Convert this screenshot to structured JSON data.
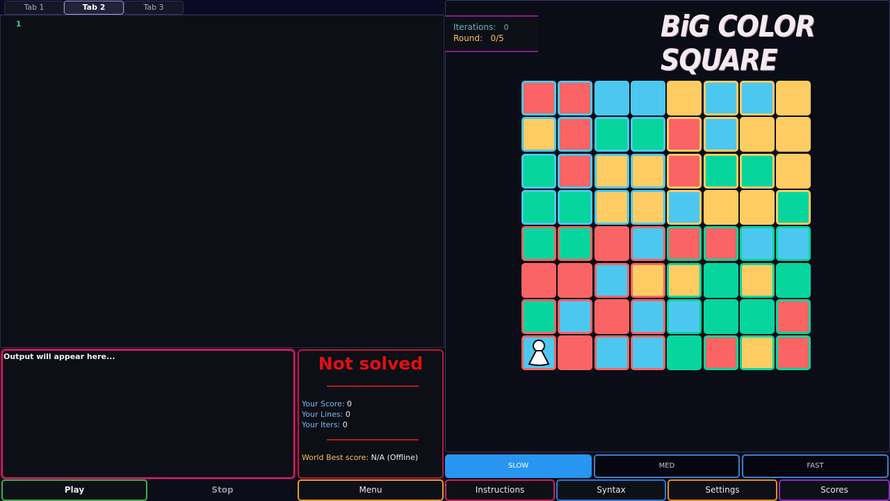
{
  "tabs": [
    {
      "label": "Tab 1"
    },
    {
      "label": "Tab 2",
      "active": true
    },
    {
      "label": "Tab 3"
    }
  ],
  "editor": {
    "line_numbers": [
      "1"
    ]
  },
  "output": {
    "placeholder": "Output will appear here..."
  },
  "result": {
    "status": "Not solved",
    "score_label": "Your Score:",
    "score": "0",
    "lines_label": "Your Lines:",
    "lines": "0",
    "iters_label": "Your Iters:",
    "iters": "0",
    "world_label": "World Best score:",
    "world": "N/A (Offline)"
  },
  "controls": {
    "play": "Play",
    "stop": "Stop",
    "menu": "Menu",
    "instructions": "Instructions",
    "syntax": "Syntax",
    "settings": "Settings",
    "scores": "Scores"
  },
  "speed": {
    "options": [
      "SLOW",
      "MED",
      "FAST"
    ],
    "selected": "SLOW"
  },
  "info": {
    "iterations_label": "Iterations:",
    "iterations": "0",
    "round_label": "Round:",
    "round": "0/5"
  },
  "logo": "BiG COLOR SQUARE",
  "colors": {
    "R": "#fa6464",
    "B": "#4cc8f0",
    "Y": "#fecc62",
    "G": "#06d69e"
  },
  "grid": {
    "fills": [
      "RRBBYBBY",
      "YRGGRBYY",
      "GRYYRGGY",
      "GGYYBYYG",
      "GGRBRRBB",
      "RRBYYGYG",
      "GBRBBGGR",
      "BRBBGRYR"
    ],
    "quadrant_borders": {
      "top_left": "B",
      "top_right": "Y",
      "bottom_left": "R",
      "bottom_right": "G"
    },
    "player": {
      "row": 8,
      "col": 1
    }
  }
}
